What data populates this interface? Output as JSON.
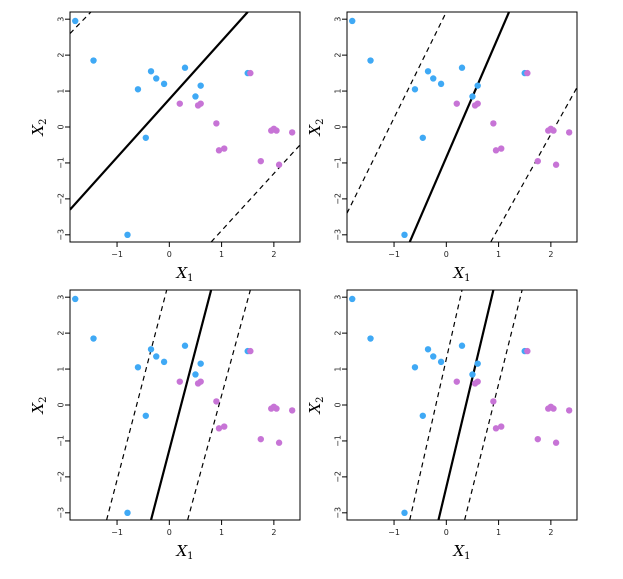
{
  "colors": {
    "class_a": "#3fa9f5",
    "class_b": "#c774d6",
    "frame": "#000000"
  },
  "chart_data": [
    {
      "type": "scatter",
      "xlabel": "X",
      "xlabel_sub": "1",
      "ylabel": "X",
      "ylabel_sub": "2",
      "xlim": [
        -1.9,
        2.5
      ],
      "ylim": [
        -3.2,
        3.2
      ],
      "xticks": [
        -1,
        0,
        1,
        2
      ],
      "yticks": [
        -3,
        -2,
        -1,
        0,
        1,
        2,
        3
      ],
      "xtick_labels": [
        "−1",
        "0",
        "1",
        "2"
      ],
      "ytick_labels": [
        "−3",
        "−2",
        "−1",
        "0",
        "1",
        "2",
        "3"
      ],
      "series_a": [
        [
          -1.8,
          2.95
        ],
        [
          -1.45,
          1.85
        ],
        [
          -0.6,
          1.05
        ],
        [
          -0.35,
          1.55
        ],
        [
          -0.25,
          1.35
        ],
        [
          -0.1,
          1.2
        ],
        [
          0.3,
          1.65
        ],
        [
          0.5,
          0.85
        ],
        [
          0.6,
          1.15
        ],
        [
          1.5,
          1.5
        ],
        [
          -0.45,
          -0.3
        ],
        [
          -0.8,
          -3.0
        ]
      ],
      "series_b": [
        [
          0.2,
          0.65
        ],
        [
          0.55,
          0.6
        ],
        [
          0.6,
          0.65
        ],
        [
          0.9,
          0.1
        ],
        [
          0.95,
          -0.65
        ],
        [
          1.05,
          -0.6
        ],
        [
          1.55,
          1.5
        ],
        [
          1.75,
          -0.95
        ],
        [
          1.95,
          -0.1
        ],
        [
          2.0,
          -0.05
        ],
        [
          2.05,
          -0.1
        ],
        [
          2.1,
          -1.05
        ],
        [
          2.35,
          -0.15
        ]
      ],
      "lines": [
        {
          "style": "solid",
          "points": [
            [
              -1.9,
              -2.3
            ],
            [
              1.5,
              3.2
            ]
          ]
        },
        {
          "style": "dashed",
          "points": [
            [
              -1.9,
              2.6
            ],
            [
              -1.5,
              3.2
            ]
          ]
        },
        {
          "style": "dashed",
          "points": [
            [
              0.8,
              -3.2
            ],
            [
              2.5,
              -0.5
            ]
          ]
        }
      ]
    },
    {
      "type": "scatter",
      "xlabel": "X",
      "xlabel_sub": "1",
      "ylabel": "X",
      "ylabel_sub": "2",
      "xlim": [
        -1.9,
        2.5
      ],
      "ylim": [
        -3.2,
        3.2
      ],
      "xticks": [
        -1,
        0,
        1,
        2
      ],
      "yticks": [
        -3,
        -2,
        -1,
        0,
        1,
        2,
        3
      ],
      "xtick_labels": [
        "−1",
        "0",
        "1",
        "2"
      ],
      "ytick_labels": [
        "−3",
        "−2",
        "−1",
        "0",
        "1",
        "2",
        "3"
      ],
      "series_a": [
        [
          -1.8,
          2.95
        ],
        [
          -1.45,
          1.85
        ],
        [
          -0.6,
          1.05
        ],
        [
          -0.35,
          1.55
        ],
        [
          -0.25,
          1.35
        ],
        [
          -0.1,
          1.2
        ],
        [
          0.3,
          1.65
        ],
        [
          0.5,
          0.85
        ],
        [
          0.6,
          1.15
        ],
        [
          1.5,
          1.5
        ],
        [
          -0.45,
          -0.3
        ],
        [
          -0.8,
          -3.0
        ]
      ],
      "series_b": [
        [
          0.2,
          0.65
        ],
        [
          0.55,
          0.6
        ],
        [
          0.6,
          0.65
        ],
        [
          0.9,
          0.1
        ],
        [
          0.95,
          -0.65
        ],
        [
          1.05,
          -0.6
        ],
        [
          1.55,
          1.5
        ],
        [
          1.75,
          -0.95
        ],
        [
          1.95,
          -0.1
        ],
        [
          2.0,
          -0.05
        ],
        [
          2.05,
          -0.1
        ],
        [
          2.1,
          -1.05
        ],
        [
          2.35,
          -0.15
        ]
      ],
      "lines": [
        {
          "style": "solid",
          "points": [
            [
              -0.7,
              -3.2
            ],
            [
              1.2,
              3.2
            ]
          ]
        },
        {
          "style": "dashed",
          "points": [
            [
              -1.9,
              -2.4
            ],
            [
              0.0,
              3.2
            ]
          ]
        },
        {
          "style": "dashed",
          "points": [
            [
              0.85,
              -3.2
            ],
            [
              2.5,
              1.1
            ]
          ]
        }
      ]
    },
    {
      "type": "scatter",
      "xlabel": "X",
      "xlabel_sub": "1",
      "ylabel": "X",
      "ylabel_sub": "2",
      "xlim": [
        -1.9,
        2.5
      ],
      "ylim": [
        -3.2,
        3.2
      ],
      "xticks": [
        -1,
        0,
        1,
        2
      ],
      "yticks": [
        -3,
        -2,
        -1,
        0,
        1,
        2,
        3
      ],
      "xtick_labels": [
        "−1",
        "0",
        "1",
        "2"
      ],
      "ytick_labels": [
        "−3",
        "−2",
        "−1",
        "0",
        "1",
        "2",
        "3"
      ],
      "series_a": [
        [
          -1.8,
          2.95
        ],
        [
          -1.45,
          1.85
        ],
        [
          -0.6,
          1.05
        ],
        [
          -0.35,
          1.55
        ],
        [
          -0.25,
          1.35
        ],
        [
          -0.1,
          1.2
        ],
        [
          0.3,
          1.65
        ],
        [
          0.5,
          0.85
        ],
        [
          0.6,
          1.15
        ],
        [
          1.5,
          1.5
        ],
        [
          -0.45,
          -0.3
        ],
        [
          -0.8,
          -3.0
        ]
      ],
      "series_b": [
        [
          0.2,
          0.65
        ],
        [
          0.55,
          0.6
        ],
        [
          0.6,
          0.65
        ],
        [
          0.9,
          0.1
        ],
        [
          0.95,
          -0.65
        ],
        [
          1.05,
          -0.6
        ],
        [
          1.55,
          1.5
        ],
        [
          1.75,
          -0.95
        ],
        [
          1.95,
          -0.1
        ],
        [
          2.0,
          -0.05
        ],
        [
          2.05,
          -0.1
        ],
        [
          2.1,
          -1.05
        ],
        [
          2.35,
          -0.15
        ]
      ],
      "lines": [
        {
          "style": "solid",
          "points": [
            [
              -0.35,
              -3.2
            ],
            [
              0.8,
              3.2
            ]
          ]
        },
        {
          "style": "dashed",
          "points": [
            [
              -1.2,
              -3.2
            ],
            [
              -0.05,
              3.2
            ]
          ]
        },
        {
          "style": "dashed",
          "points": [
            [
              0.35,
              -3.2
            ],
            [
              1.55,
              3.2
            ]
          ]
        }
      ]
    },
    {
      "type": "scatter",
      "xlabel": "X",
      "xlabel_sub": "1",
      "ylabel": "X",
      "ylabel_sub": "2",
      "xlim": [
        -1.9,
        2.5
      ],
      "ylim": [
        -3.2,
        3.2
      ],
      "xticks": [
        -1,
        0,
        1,
        2
      ],
      "yticks": [
        -3,
        -2,
        -1,
        0,
        1,
        2,
        3
      ],
      "xtick_labels": [
        "−1",
        "0",
        "1",
        "2"
      ],
      "ytick_labels": [
        "−3",
        "−2",
        "−1",
        "0",
        "1",
        "2",
        "3"
      ],
      "series_a": [
        [
          -1.8,
          2.95
        ],
        [
          -1.45,
          1.85
        ],
        [
          -0.6,
          1.05
        ],
        [
          -0.35,
          1.55
        ],
        [
          -0.25,
          1.35
        ],
        [
          -0.1,
          1.2
        ],
        [
          0.3,
          1.65
        ],
        [
          0.5,
          0.85
        ],
        [
          0.6,
          1.15
        ],
        [
          1.5,
          1.5
        ],
        [
          -0.45,
          -0.3
        ],
        [
          -0.8,
          -3.0
        ]
      ],
      "series_b": [
        [
          0.2,
          0.65
        ],
        [
          0.55,
          0.6
        ],
        [
          0.6,
          0.65
        ],
        [
          0.9,
          0.1
        ],
        [
          0.95,
          -0.65
        ],
        [
          1.05,
          -0.6
        ],
        [
          1.55,
          1.5
        ],
        [
          1.75,
          -0.95
        ],
        [
          1.95,
          -0.1
        ],
        [
          2.0,
          -0.05
        ],
        [
          2.05,
          -0.1
        ],
        [
          2.1,
          -1.05
        ],
        [
          2.35,
          -0.15
        ]
      ],
      "lines": [
        {
          "style": "solid",
          "points": [
            [
              -0.15,
              -3.2
            ],
            [
              0.9,
              3.2
            ]
          ]
        },
        {
          "style": "dashed",
          "points": [
            [
              -0.7,
              -3.2
            ],
            [
              0.3,
              3.2
            ]
          ]
        },
        {
          "style": "dashed",
          "points": [
            [
              0.35,
              -3.2
            ],
            [
              1.45,
              3.2
            ]
          ]
        }
      ]
    }
  ]
}
